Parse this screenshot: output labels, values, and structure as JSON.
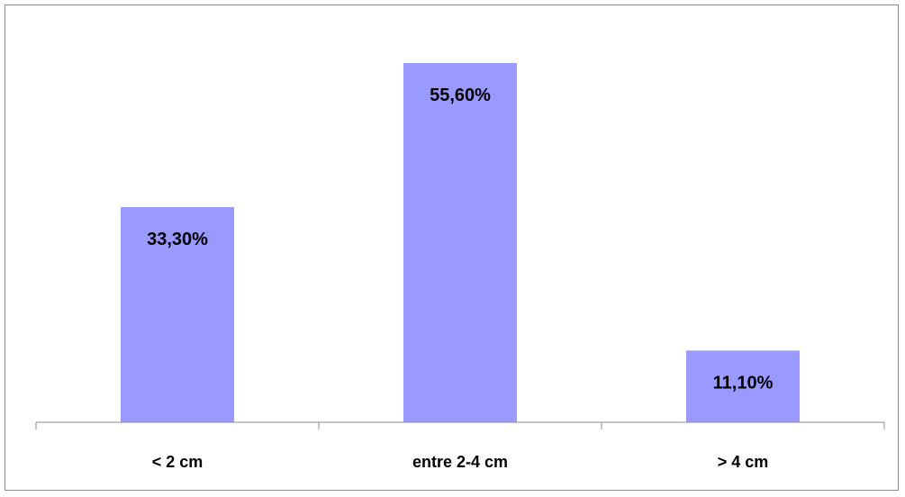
{
  "chart_data": {
    "type": "bar",
    "categories": [
      "< 2 cm",
      "entre 2-4 cm",
      "> 4 cm"
    ],
    "values": [
      33.3,
      55.6,
      11.1
    ],
    "data_labels": [
      "33,30%",
      "55,60%",
      "11,10%"
    ],
    "ylim": [
      0,
      60
    ],
    "grid": false,
    "legend": "none",
    "bar_color": "#9999ff"
  }
}
